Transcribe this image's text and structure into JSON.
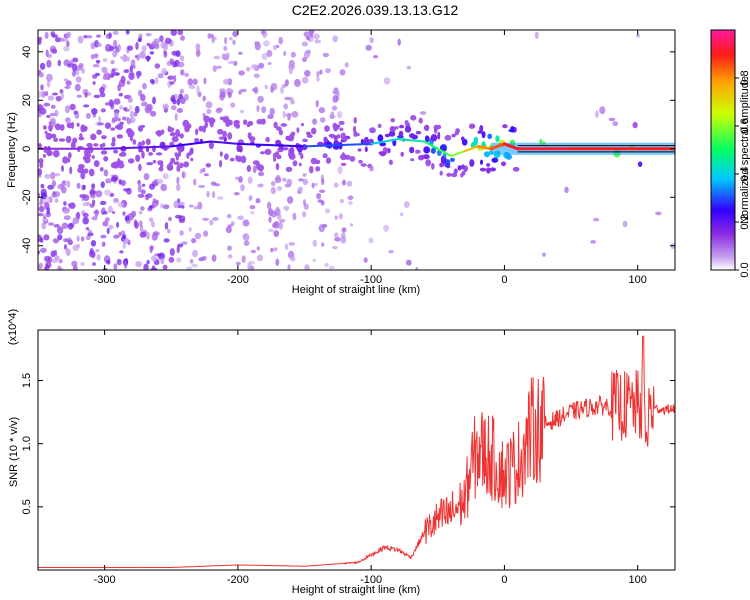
{
  "title": "C2E2.2026.039.13.13.G12",
  "spectrogram": {
    "xlabel": "Height of straight line (km)",
    "ylabel": "Frequency (Hz)",
    "xlim": [
      -350,
      128
    ],
    "ylim": [
      -50,
      49
    ],
    "xticks": [
      -300,
      -200,
      -100,
      0,
      100
    ],
    "yticks": [
      -40,
      -20,
      0,
      20,
      40
    ],
    "colorbar": {
      "label": "Normalized spectral amplitude",
      "ticks": [
        "0.0",
        "0.2",
        "0.4",
        "0.6",
        "0.8"
      ],
      "range": [
        0,
        1
      ]
    },
    "ridge": {
      "x": [
        -350,
        -300,
        -250,
        -220,
        -200,
        -150,
        -100,
        -80,
        -60,
        -50,
        -40,
        -30,
        -20,
        -10,
        0,
        10,
        50,
        100,
        128
      ],
      "frequency": [
        0,
        0,
        1,
        3,
        2,
        1,
        2,
        4,
        3,
        0,
        -3,
        -1,
        1,
        0,
        2,
        0,
        0,
        0,
        0
      ],
      "amplitude": [
        0.15,
        0.15,
        0.2,
        0.25,
        0.22,
        0.25,
        0.3,
        0.4,
        0.45,
        0.5,
        0.55,
        0.6,
        0.75,
        0.8,
        0.85,
        0.9,
        0.92,
        0.9,
        0.9
      ]
    }
  },
  "chart_data": {
    "type": "line",
    "title": "C2E2.2026.039.13.13.G12",
    "xlabel": "Height of straight line (km)",
    "ylabel": "SNR (10 * v/v)",
    "multiplier": "(x10^4)",
    "xlim": [
      -350,
      128
    ],
    "ylim": [
      0,
      1.9
    ],
    "xticks": [
      -300,
      -200,
      -100,
      0,
      100
    ],
    "yticks": [
      0.5,
      1.0,
      1.5
    ],
    "ytick_labels": [
      "0.5",
      "1.0",
      "1.5"
    ],
    "color": "#ee3333",
    "series": [
      {
        "x": [
          -350,
          -300,
          -250,
          -200,
          -150,
          -110,
          -100,
          -90,
          -80,
          -70,
          -60,
          -50,
          -40,
          -30,
          -25,
          -20,
          -10,
          0,
          10,
          20,
          30,
          40,
          50,
          60,
          70,
          80,
          90,
          100,
          105,
          110,
          120,
          128
        ],
        "y": [
          0.02,
          0.02,
          0.02,
          0.04,
          0.03,
          0.06,
          0.12,
          0.18,
          0.16,
          0.1,
          0.3,
          0.4,
          0.45,
          0.55,
          0.8,
          0.95,
          0.9,
          0.75,
          0.85,
          1.1,
          1.15,
          1.2,
          1.25,
          1.28,
          1.3,
          1.3,
          1.3,
          1.3,
          1.25,
          1.28,
          1.27,
          1.28
        ]
      }
    ]
  }
}
